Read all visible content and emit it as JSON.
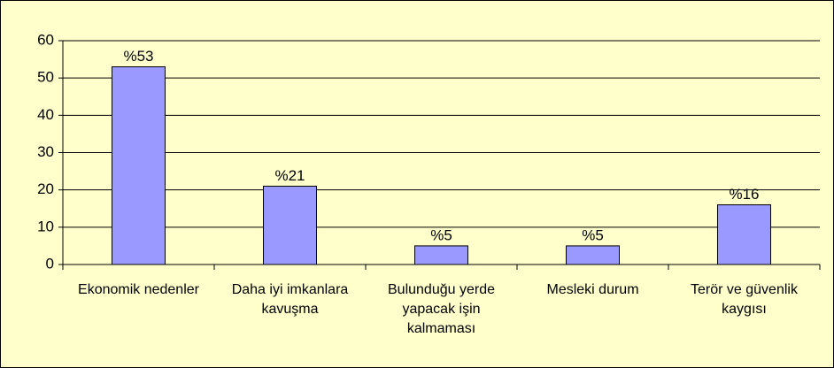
{
  "chart_data": {
    "type": "bar",
    "categories": [
      "Ekonomik nedenler",
      "Daha iyi imkanlara kavuşma",
      "Bulunduğu yerde yapacak işin kalmaması",
      "Mesleki durum",
      "Terör ve güvenlik kaygısı"
    ],
    "values": [
      53,
      21,
      5,
      5,
      16
    ],
    "value_labels": [
      "%53",
      "%21",
      "%5",
      "%5",
      "%16"
    ],
    "color": "#9999ff",
    "ylim": [
      0,
      60
    ],
    "yticks": [
      0,
      10,
      20,
      30,
      40,
      50,
      60
    ],
    "grid": true
  }
}
